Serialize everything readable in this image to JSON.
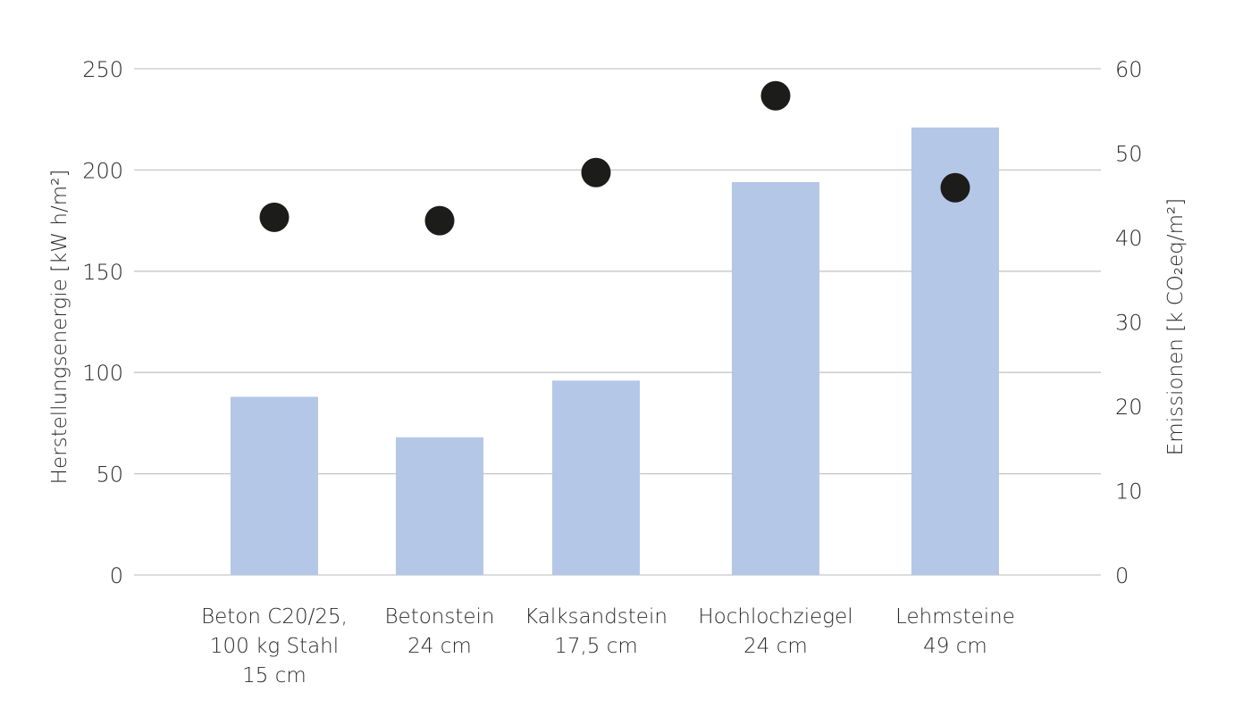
{
  "chart_data": {
    "type": "bar",
    "title": "",
    "categories": [
      [
        "Beton C20/25,",
        "100 kg Stahl",
        "15 cm"
      ],
      [
        "Betonstein",
        "24 cm"
      ],
      [
        "Kalksandstein",
        "17,5 cm"
      ],
      [
        "Hochlochziegel",
        "24 cm"
      ],
      [
        "Lehmsteine",
        "49 cm"
      ]
    ],
    "series": [
      {
        "name": "Herstellungsenergie",
        "type": "bar",
        "axis": "left",
        "color": "#b4c7e7",
        "values": [
          88,
          68,
          96,
          194,
          221
        ]
      },
      {
        "name": "Emissionen",
        "type": "scatter",
        "axis": "right",
        "color": "#1c1c1a",
        "values": [
          42.4,
          42.0,
          47.7,
          56.8,
          45.9
        ]
      }
    ],
    "ylabel": "Herstellungsenergie [kW h/m²]",
    "y2label": "Emissionen [k CO₂eq/m²]",
    "ylim": [
      0,
      250
    ],
    "y2lim": [
      0,
      60
    ],
    "yticks": [
      "0",
      "50",
      "100",
      "150",
      "200",
      "250"
    ],
    "y2ticks": [
      "0",
      "10",
      "20",
      "30",
      "40",
      "50",
      "60"
    ],
    "grid": true,
    "legend": "none"
  }
}
